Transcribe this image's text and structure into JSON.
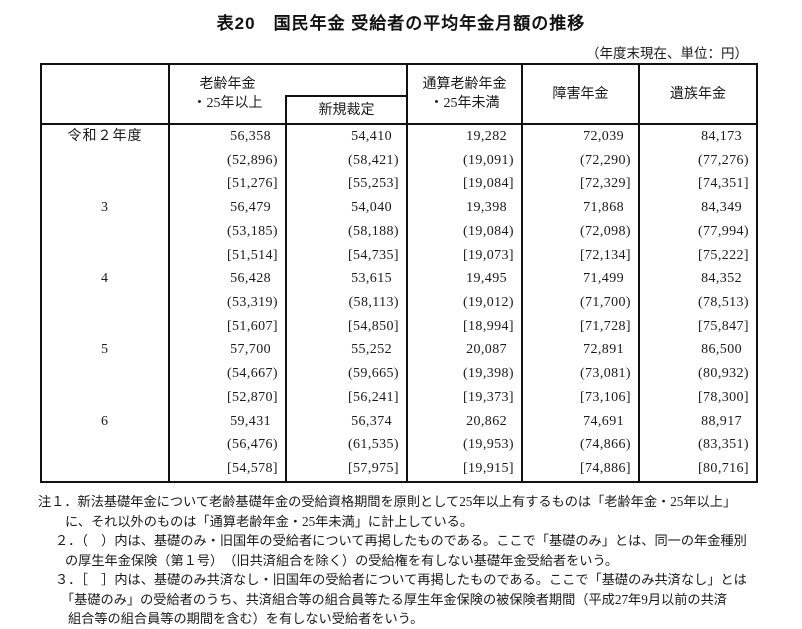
{
  "title": "表20　国民年金 受給者の平均年金月額の推移",
  "unit_note": "（年度末現在、単位：円）",
  "table": {
    "headers": {
      "oldage_l1": "老齢年金",
      "oldage_l2": "・25年以上",
      "new_ruling": "新規裁定",
      "total_oldage_l1": "通算老齢年金",
      "total_oldage_l2": "・25年未満",
      "disability": "障害年金",
      "survivor": "遺族年金"
    },
    "rows": [
      {
        "year": "令和２年度",
        "cols": [
          [
            "56,358",
            "(52,896)",
            "[51,276]"
          ],
          [
            "54,410",
            "(58,421)",
            "[55,253]"
          ],
          [
            "19,282",
            "(19,091)",
            "[19,084]"
          ],
          [
            "72,039",
            "(72,290)",
            "[72,329]"
          ],
          [
            "84,173",
            "(77,276)",
            "[74,351]"
          ]
        ]
      },
      {
        "year": "3",
        "cols": [
          [
            "56,479",
            "(53,185)",
            "[51,514]"
          ],
          [
            "54,040",
            "(58,188)",
            "[54,735]"
          ],
          [
            "19,398",
            "(19,084)",
            "[19,073]"
          ],
          [
            "71,868",
            "(72,098)",
            "[72,134]"
          ],
          [
            "84,349",
            "(77,994)",
            "[75,222]"
          ]
        ]
      },
      {
        "year": "4",
        "cols": [
          [
            "56,428",
            "(53,319)",
            "[51,607]"
          ],
          [
            "53,615",
            "(58,113)",
            "[54,850]"
          ],
          [
            "19,495",
            "(19,012)",
            "[18,994]"
          ],
          [
            "71,499",
            "(71,700)",
            "[71,728]"
          ],
          [
            "84,352",
            "(78,513)",
            "[75,847]"
          ]
        ]
      },
      {
        "year": "5",
        "cols": [
          [
            "57,700",
            "(54,667)",
            "[52,870]"
          ],
          [
            "55,252",
            "(59,665)",
            "[56,241]"
          ],
          [
            "20,087",
            "(19,398)",
            "[19,373]"
          ],
          [
            "72,891",
            "(73,081)",
            "[73,106]"
          ],
          [
            "86,500",
            "(80,932)",
            "[78,300]"
          ]
        ]
      },
      {
        "year": "6",
        "cols": [
          [
            "59,431",
            "(56,476)",
            "[54,578]"
          ],
          [
            "56,374",
            "(61,535)",
            "[57,975]"
          ],
          [
            "20,862",
            "(19,953)",
            "[19,915]"
          ],
          [
            "74,691",
            "(74,866)",
            "[74,886]"
          ],
          [
            "88,917",
            "(83,351)",
            "[80,716]"
          ]
        ]
      }
    ]
  },
  "footnotes": [
    "注１．新法基礎年金について老齢基礎年金の受給資格期間を原則として25年以上有するものは「老齢年金・25年以上」",
    "に、それ以外のものは「通算老齢年金・25年未満」に計上している。",
    "２．（　）内は、基礎のみ・旧国年の受給者について再掲したものである。ここで「基礎のみ」とは、同一の年金種別",
    "の厚生年金保険（第１号）　（旧共済組合を除く）の受給権を有しない基礎年金受給者をいう。",
    "３．［　］内は、基礎のみ共済なし・旧国年の受給者について再掲したものである。ここで「基礎のみ共済なし」とは",
    "「基礎のみ」の受給者のうち、共済組合等の組合員等たる厚生年金保険の被保険者期間（平成27年9月以前の共済",
    "組合等の組合員等の期間を含む）を有しない受給者をいう。"
  ]
}
